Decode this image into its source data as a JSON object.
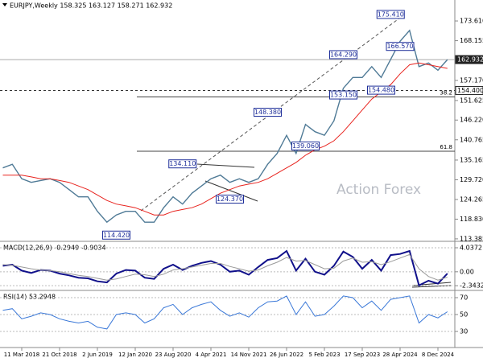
{
  "chart_data": [
    {
      "type": "line",
      "title": "EURJPY,Weekly  158.325 163.127 158.271 162.932",
      "watermark": "Action Forex",
      "categories": [
        null,
        null,
        "11 Mar 2018",
        null,
        null,
        null,
        "21 Oct 2018",
        null,
        null,
        null,
        "2 Jun 2019",
        null,
        null,
        null,
        "12 Jan 2020",
        null,
        null,
        null,
        "23 Aug 2020",
        null,
        null,
        null,
        "4 Apr 2021",
        null,
        null,
        null,
        "14 Nov 2021",
        null,
        null,
        null,
        "26 Jun 2022",
        null,
        null,
        null,
        "5 Feb 2023",
        null,
        null,
        null,
        "17 Sep 2023",
        null,
        null,
        null,
        "28 Apr 2024",
        null,
        null,
        null,
        "8 Dec 2024",
        null
      ],
      "series": [
        {
          "color": "#4f7a96",
          "values": [
            133,
            134,
            130,
            129,
            129.5,
            130,
            129,
            127,
            125,
            125,
            121,
            118,
            120,
            121,
            121,
            118,
            118,
            122,
            125,
            123,
            126,
            128,
            130,
            131,
            129,
            130,
            129,
            130,
            134,
            137,
            142,
            137,
            145,
            143,
            142,
            146,
            155,
            158,
            158,
            161,
            158,
            163,
            168,
            171,
            161,
            162,
            160,
            162.932
          ]
        },
        {
          "color": "#e8231e",
          "values": [
            131,
            131,
            131,
            130.5,
            130,
            130,
            129.5,
            129,
            128,
            127,
            125.5,
            124,
            123,
            122.5,
            122,
            121,
            120,
            120,
            121,
            121.5,
            122,
            123,
            124.5,
            126,
            127,
            128,
            128.5,
            129,
            130,
            131.5,
            133,
            134.5,
            136.5,
            138,
            139,
            140.5,
            143,
            146,
            149,
            152,
            154,
            156,
            159,
            161.5,
            162,
            161.5,
            161,
            160.5
          ]
        }
      ],
      "ylim": [
        112.7,
        179.4
      ],
      "yticks": [
        {
          "value": 173.61,
          "label": "173.610"
        },
        168.155,
        {
          "value": 157.17,
          "label": "157.170"
        },
        151.625,
        {
          "value": 146.22,
          "label": "146.220"
        },
        140.765,
        135.165,
        {
          "value": 129.72,
          "label": "129.720"
        },
        124.265,
        {
          "value": 118.83,
          "label": "118.830"
        },
        113.385
      ],
      "annotations": [
        {
          "label": "175.410",
          "x": 41,
          "value": 175.41
        },
        {
          "label": "166.570",
          "x": 42,
          "value": 166.57
        },
        {
          "label": "164.290",
          "x": 36,
          "value": 164.29
        },
        {
          "label": "154.480",
          "x": 40,
          "value": 154.48
        },
        {
          "label": "153.150",
          "x": 36,
          "value": 153.15
        },
        {
          "label": "148.380",
          "x": 28,
          "value": 148.38
        },
        {
          "label": "139.060",
          "x": 32,
          "value": 139.06
        },
        {
          "label": "134.110",
          "x": 19,
          "value": 134.11
        },
        {
          "label": "124.370",
          "x": 24,
          "value": 124.37
        },
        {
          "label": "114.420",
          "x": 12,
          "value": 114.42
        }
      ],
      "price_tags": [
        {
          "label": "162.932",
          "value": 162.932
        },
        {
          "label": "154.400",
          "value": 154.4
        }
      ],
      "fib_levels": [
        {
          "ratio": 38.2,
          "value": 152.6
        },
        {
          "ratio": 61.8,
          "value": 137.6
        }
      ]
    },
    {
      "type": "line",
      "title": "MACD(12,26,9) -0.2949 -0.9034",
      "series": [
        {
          "color": "#10108a",
          "values": [
            1,
            1.2,
            0.2,
            -0.2,
            0.3,
            0.2,
            -0.3,
            -0.6,
            -1,
            -1.1,
            -1.6,
            -1.8,
            -0.3,
            0.3,
            0.2,
            -1,
            -1.2,
            0.5,
            1.2,
            0.3,
            1,
            1.5,
            1.8,
            1.2,
            0,
            0.2,
            -0.5,
            0.8,
            2,
            2.3,
            3.5,
            0.2,
            2.2,
            0,
            -0.5,
            1,
            3.4,
            2.5,
            0.5,
            2,
            0.2,
            2.8,
            3,
            3.5,
            -2.3,
            -1.5,
            -2,
            -0.2949
          ]
        },
        {
          "color": "#9a9a9a",
          "values": [
            1.2,
            1.1,
            0.8,
            0.5,
            0.3,
            0.2,
            0,
            -0.3,
            -0.6,
            -0.8,
            -1.1,
            -1.4,
            -1.2,
            -0.8,
            -0.4,
            -0.5,
            -0.8,
            -0.4,
            0.3,
            0.5,
            0.8,
            1.1,
            1.4,
            1.4,
            0.9,
            0.5,
            0.1,
            0.3,
            1,
            1.6,
            2.4,
            1.8,
            1.9,
            1.2,
            0.5,
            0.6,
            1.8,
            2.3,
            1.6,
            1.7,
            1.2,
            1.7,
            2.3,
            2.9,
            0.5,
            -0.8,
            -1.4,
            -0.9034
          ]
        }
      ],
      "ylim": [
        -3,
        4.85
      ],
      "yticks": [
        4.0372,
        {
          "value": 0,
          "label": "0.00"
        },
        -2.3432
      ]
    },
    {
      "type": "line",
      "title": "RSI(14) 53.2948",
      "series": [
        {
          "color": "#3a78d8",
          "values": [
            55,
            57,
            45,
            48,
            52,
            50,
            45,
            42,
            40,
            42,
            35,
            33,
            50,
            52,
            50,
            40,
            45,
            58,
            62,
            50,
            58,
            62,
            65,
            55,
            48,
            52,
            47,
            58,
            65,
            66,
            72,
            50,
            65,
            48,
            50,
            60,
            72,
            70,
            58,
            66,
            55,
            68,
            70,
            72,
            40,
            50,
            46,
            53.2948
          ]
        }
      ],
      "ylim": [
        11,
        77.6
      ],
      "yticks": [
        70,
        50,
        30
      ]
    }
  ]
}
